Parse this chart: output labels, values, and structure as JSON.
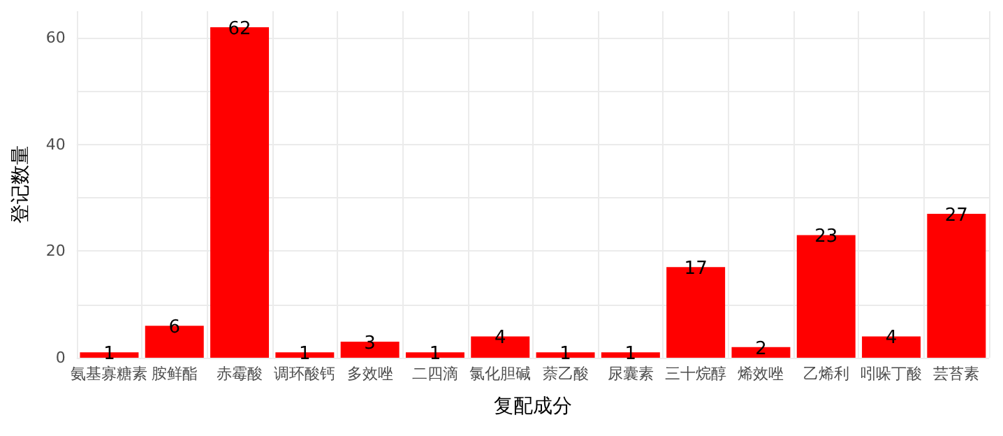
{
  "chart_data": {
    "type": "bar",
    "xlabel": "复配成分",
    "ylabel": "登记数量",
    "categories": [
      "氨基寡糖素",
      "胺鲜酯",
      "赤霉酸",
      "调环酸钙",
      "多效唑",
      "二四滴",
      "氯化胆碱",
      "萘乙酸",
      "尿囊素",
      "三十烷醇",
      "烯效唑",
      "乙烯利",
      "吲哚丁酸",
      "芸苔素"
    ],
    "values": [
      1,
      6,
      62,
      1,
      3,
      1,
      4,
      1,
      1,
      17,
      2,
      23,
      4,
      27
    ],
    "color": "#ff0000",
    "ylim": [
      0,
      65
    ],
    "yticks": [
      0,
      {
        "value": 10,
        "label": null
      },
      20,
      {
        "value": 30,
        "label": null
      },
      40,
      {
        "value": 50,
        "label": null
      },
      60
    ],
    "grid": true,
    "data_labels": true
  }
}
